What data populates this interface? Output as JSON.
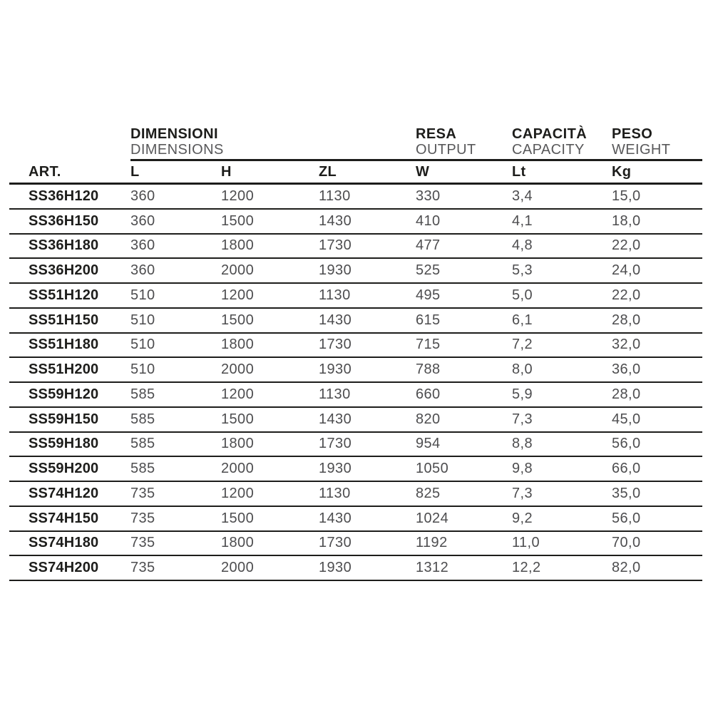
{
  "header": {
    "groups": [
      {
        "title": "DIMENSIONI",
        "subtitle": "DIMENSIONS"
      },
      {
        "title": "RESA",
        "subtitle": "OUTPUT"
      },
      {
        "title": "CAPACITÀ",
        "subtitle": "CAPACITY"
      },
      {
        "title": "PESO",
        "subtitle": "WEIGHT"
      }
    ],
    "columns": [
      "ART.",
      "L",
      "H",
      "ZL",
      "W",
      "Lt",
      "Kg"
    ]
  },
  "rows": [
    [
      "SS36H120",
      "360",
      "1200",
      "1130",
      "330",
      "3,4",
      "15,0"
    ],
    [
      "SS36H150",
      "360",
      "1500",
      "1430",
      "410",
      "4,1",
      "18,0"
    ],
    [
      "SS36H180",
      "360",
      "1800",
      "1730",
      "477",
      "4,8",
      "22,0"
    ],
    [
      "SS36H200",
      "360",
      "2000",
      "1930",
      "525",
      "5,3",
      "24,0"
    ],
    [
      "SS51H120",
      "510",
      "1200",
      "1130",
      "495",
      "5,0",
      "22,0"
    ],
    [
      "SS51H150",
      "510",
      "1500",
      "1430",
      "615",
      "6,1",
      "28,0"
    ],
    [
      "SS51H180",
      "510",
      "1800",
      "1730",
      "715",
      "7,2",
      "32,0"
    ],
    [
      "SS51H200",
      "510",
      "2000",
      "1930",
      "788",
      "8,0",
      "36,0"
    ],
    [
      "SS59H120",
      "585",
      "1200",
      "1130",
      "660",
      "5,9",
      "28,0"
    ],
    [
      "SS59H150",
      "585",
      "1500",
      "1430",
      "820",
      "7,3",
      "45,0"
    ],
    [
      "SS59H180",
      "585",
      "1800",
      "1730",
      "954",
      "8,8",
      "56,0"
    ],
    [
      "SS59H200",
      "585",
      "2000",
      "1930",
      "1050",
      "9,8",
      "66,0"
    ],
    [
      "SS74H120",
      "735",
      "1200",
      "1130",
      "825",
      "7,3",
      "35,0"
    ],
    [
      "SS74H150",
      "735",
      "1500",
      "1430",
      "1024",
      "9,2",
      "56,0"
    ],
    [
      "SS74H180",
      "735",
      "1800",
      "1730",
      "1192",
      "11,0",
      "70,0"
    ],
    [
      "SS74H200",
      "735",
      "2000",
      "1930",
      "1312",
      "12,2",
      "82,0"
    ]
  ],
  "colors": {
    "text_primary": "#1d1d1b",
    "text_secondary": "#58585a",
    "value_gray": "#4d4d4f",
    "rule": "#1d1d1b",
    "background": "#ffffff"
  }
}
